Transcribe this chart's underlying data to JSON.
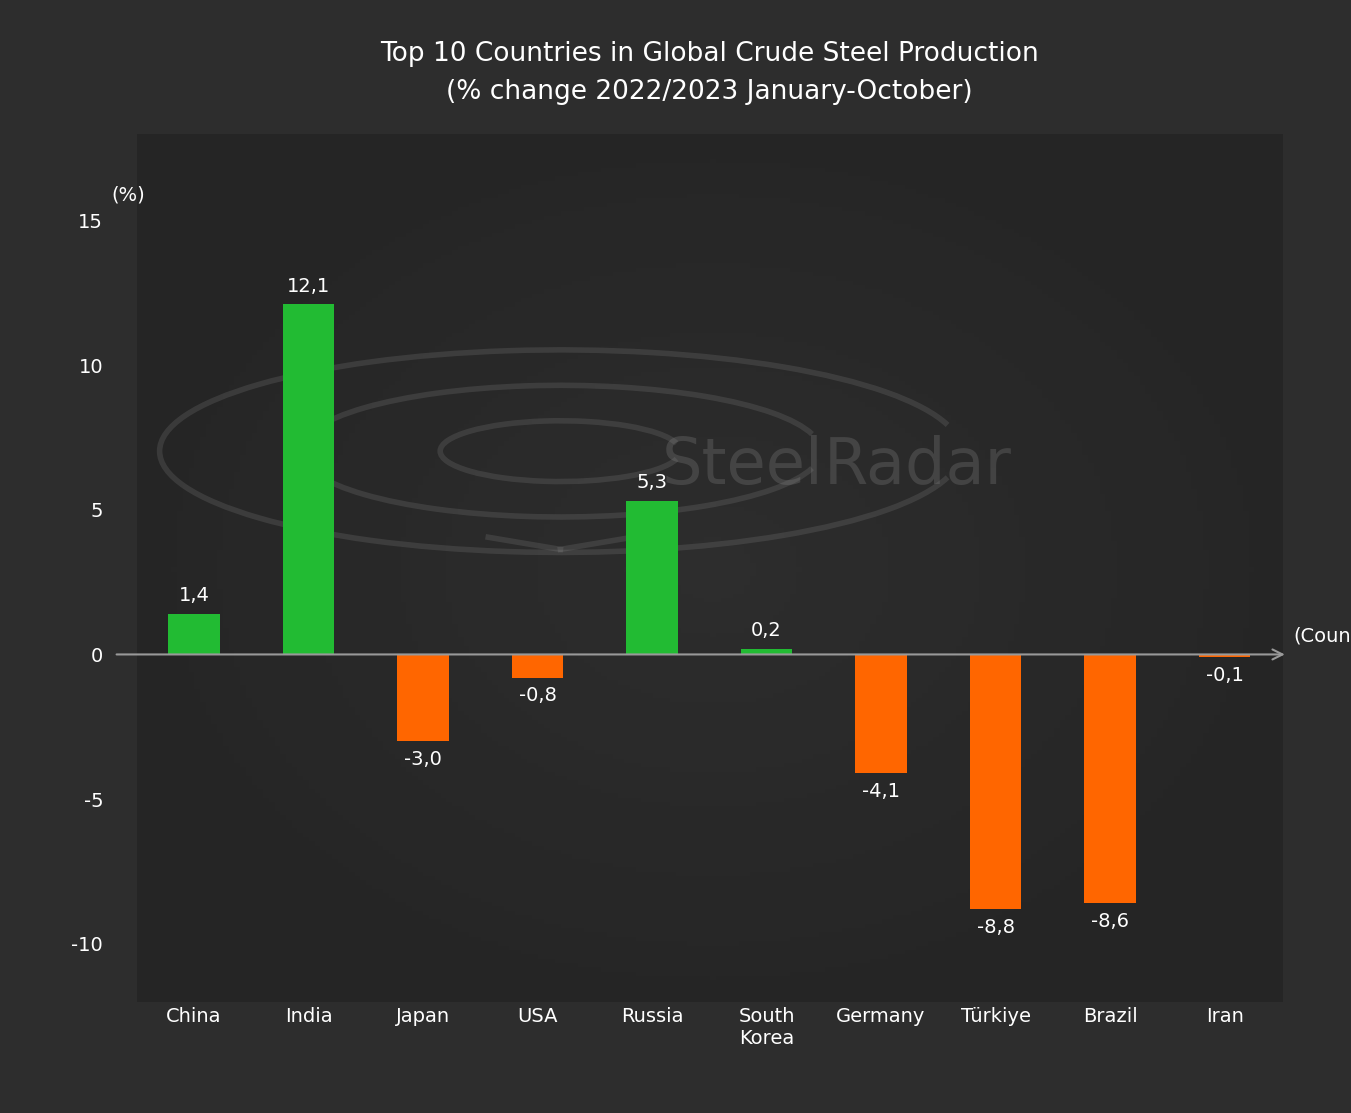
{
  "title_line1": "Top 10 Countries in Global Crude Steel Production",
  "title_line2": "(% change 2022/2023 January-October)",
  "xlabel": "(Countries)",
  "ylabel": "(%)",
  "categories": [
    "China",
    "India",
    "Japan",
    "USA",
    "Russia",
    "South\nKorea",
    "Germany",
    "Türkiye",
    "Brazil",
    "Iran"
  ],
  "values": [
    1.4,
    12.1,
    -3.0,
    -0.8,
    5.3,
    0.2,
    -4.1,
    -8.8,
    -8.6,
    -0.1
  ],
  "colors": [
    "#22BB33",
    "#22BB33",
    "#FF6600",
    "#FF6600",
    "#22BB33",
    "#22BB33",
    "#FF6600",
    "#FF6600",
    "#FF6600",
    "#FF6600"
  ],
  "bg_color": "#2d2d2d",
  "text_color": "#ffffff",
  "axis_color": "#999999",
  "ylim": [
    -12,
    18
  ],
  "yticks": [
    -10,
    -5,
    0,
    5,
    10,
    15
  ],
  "title_fontsize": 19,
  "label_fontsize": 14,
  "tick_fontsize": 14,
  "value_fontsize": 14,
  "bar_width": 0.45
}
